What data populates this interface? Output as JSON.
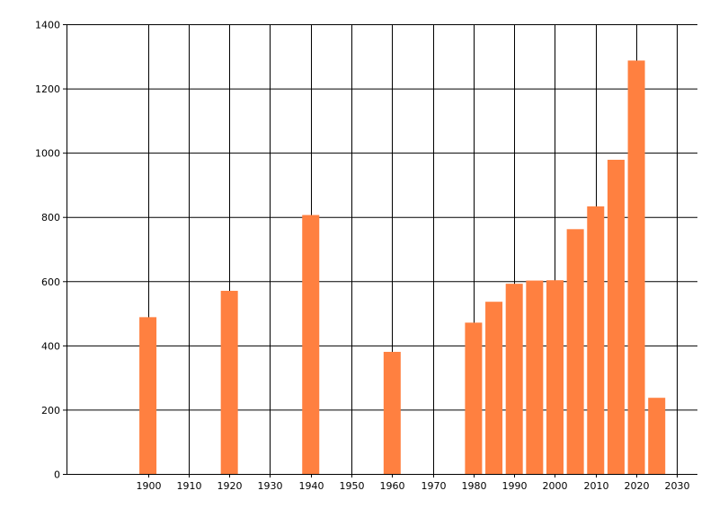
{
  "chart_data": {
    "type": "bar",
    "title": "",
    "xlabel": "",
    "ylabel": "",
    "xlim": [
      1880,
      2035
    ],
    "ylim": [
      0,
      1400
    ],
    "x_ticks": [
      1900,
      1910,
      1920,
      1930,
      1940,
      1950,
      1960,
      1970,
      1980,
      1990,
      2000,
      2010,
      2020,
      2030
    ],
    "y_ticks": [
      0,
      200,
      400,
      600,
      800,
      1000,
      1200,
      1400
    ],
    "grid": true,
    "bar_color": "#FF8040",
    "bars": [
      {
        "x": 1900,
        "value": 488
      },
      {
        "x": 1920,
        "value": 570
      },
      {
        "x": 1940,
        "value": 806
      },
      {
        "x": 1960,
        "value": 380
      },
      {
        "x": 1980,
        "value": 471
      },
      {
        "x": 1985,
        "value": 536
      },
      {
        "x": 1990,
        "value": 592
      },
      {
        "x": 1995,
        "value": 602
      },
      {
        "x": 2000,
        "value": 603
      },
      {
        "x": 2005,
        "value": 762
      },
      {
        "x": 2010,
        "value": 833
      },
      {
        "x": 2015,
        "value": 978
      },
      {
        "x": 2020,
        "value": 1287
      },
      {
        "x": 2025,
        "value": 237
      }
    ]
  }
}
